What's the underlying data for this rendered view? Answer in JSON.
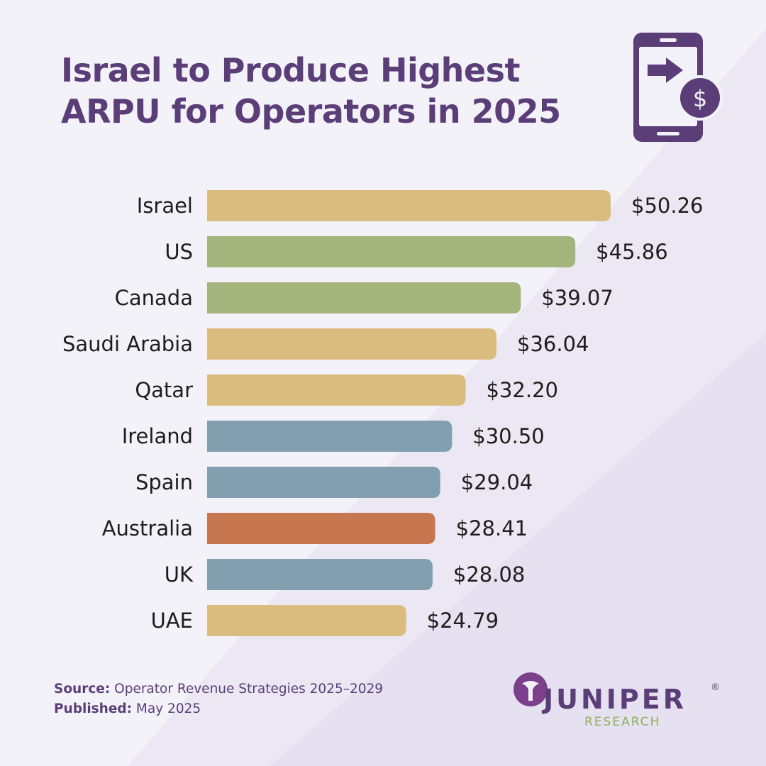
{
  "title": "Israel to Produce Highest ARPU for Operators in 2025",
  "icon": "mobile-payment-icon",
  "colors": {
    "title": "#5b3e78",
    "middle_east": "#d9bc7e",
    "north_america": "#a3b57c",
    "europe": "#829fb0",
    "oceania": "#c77750"
  },
  "chart_data": {
    "type": "bar",
    "orientation": "horizontal",
    "categories": [
      "Israel",
      "US",
      "Canada",
      "Saudi Arabia",
      "Qatar",
      "Ireland",
      "Spain",
      "Australia",
      "UK",
      "UAE"
    ],
    "values": [
      50.26,
      45.86,
      39.07,
      36.04,
      32.2,
      30.5,
      29.04,
      28.41,
      28.08,
      24.79
    ],
    "value_labels": [
      "$50.26",
      "$45.86",
      "$39.07",
      "$36.04",
      "$32.20",
      "$30.50",
      "$29.04",
      "$28.41",
      "$28.08",
      "$24.79"
    ],
    "bar_colors": [
      "#d9bc7e",
      "#a3b57c",
      "#a3b57c",
      "#d9bc7e",
      "#d9bc7e",
      "#829fb0",
      "#829fb0",
      "#c77750",
      "#829fb0",
      "#d9bc7e"
    ],
    "xlim": [
      0,
      50.26
    ],
    "grid": false,
    "legend": "none"
  },
  "footer": {
    "source_label": "Source:",
    "source_value": "Operator Revenue Strategies 2025–2029",
    "published_label": "Published:",
    "published_value": "May 2025"
  },
  "logo": {
    "name": "JUNIPER",
    "registered": "®",
    "sub": "RESEARCH"
  }
}
